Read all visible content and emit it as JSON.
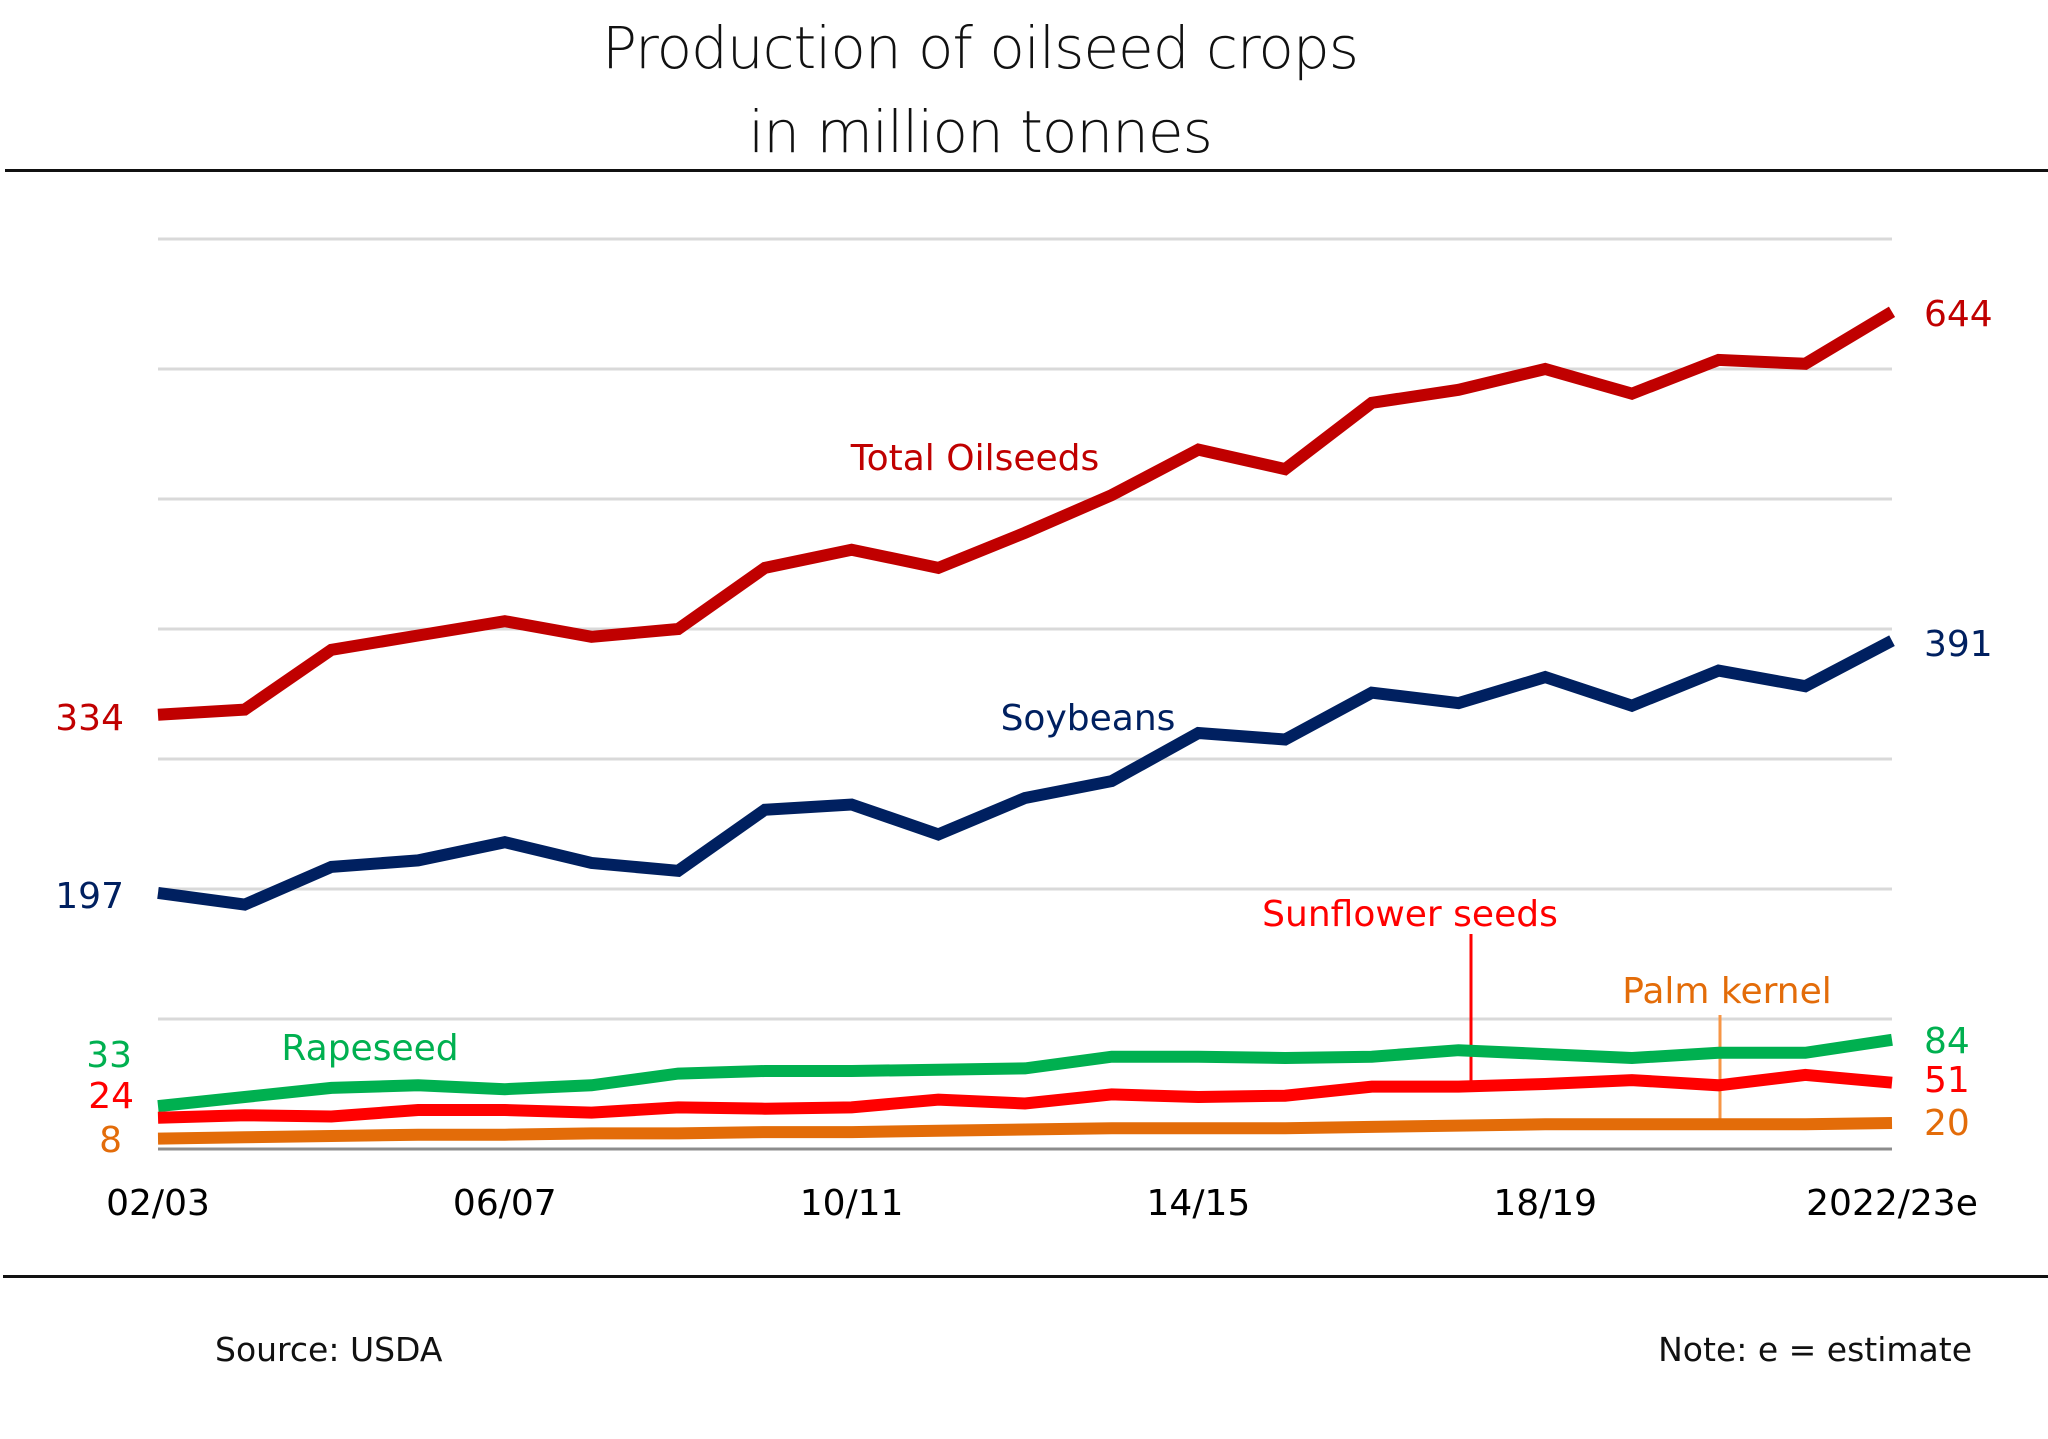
{
  "title_line1": "Production of oilseed crops",
  "title_line2": "in million tonnes",
  "footer": {
    "source": "Source: USDA",
    "note": "Note: e = estimate"
  },
  "chart_data": {
    "type": "line",
    "title": "Production of oilseed crops in million tonnes",
    "xlabel": "",
    "ylabel": "",
    "ylim": [
      0,
      700
    ],
    "grid": true,
    "x": [
      "02/03",
      "03/04",
      "04/05",
      "05/06",
      "06/07",
      "07/08",
      "08/09",
      "09/10",
      "10/11",
      "11/12",
      "12/13",
      "13/14",
      "14/15",
      "15/16",
      "16/17",
      "17/18",
      "18/19",
      "19/20",
      "20/21",
      "21/22",
      "2022/23e"
    ],
    "x_tick_labels": [
      {
        "index": 0,
        "label": "02/03"
      },
      {
        "index": 4,
        "label": "06/07"
      },
      {
        "index": 8,
        "label": "10/11"
      },
      {
        "index": 12,
        "label": "14/15"
      },
      {
        "index": 16,
        "label": "18/19"
      },
      {
        "index": 20,
        "label": "2022/23e"
      }
    ],
    "y_gridlines": [
      100,
      200,
      300,
      400,
      500,
      600,
      700
    ],
    "series": [
      {
        "name": "Total Oilseeds",
        "color": "#c00000",
        "start_label": "334",
        "end_label": "644",
        "values": [
          334,
          338,
          384,
          395,
          406,
          394,
          400,
          447,
          461,
          447,
          474,
          503,
          538,
          523,
          574,
          584,
          600,
          581,
          607,
          604,
          644
        ]
      },
      {
        "name": "Soybeans",
        "color": "#002060",
        "start_label": "197",
        "end_label": "391",
        "values": [
          197,
          188,
          217,
          222,
          236,
          220,
          214,
          261,
          265,
          242,
          270,
          283,
          320,
          315,
          351,
          343,
          363,
          341,
          368,
          356,
          391
        ]
      },
      {
        "name": "Rapeseed",
        "color": "#00b050",
        "start_label": "33",
        "end_label": "84",
        "values": [
          33,
          40,
          47,
          49,
          46,
          49,
          58,
          60,
          60,
          61,
          62,
          71,
          71,
          70,
          71,
          76,
          73,
          70,
          74,
          74,
          84
        ]
      },
      {
        "name": "Sunflower seeds",
        "color": "#ff0000",
        "start_label": "24",
        "end_label": "51",
        "values": [
          24,
          26,
          25,
          30,
          30,
          28,
          32,
          31,
          32,
          38,
          35,
          42,
          40,
          41,
          48,
          48,
          50,
          53,
          49,
          57,
          51
        ]
      },
      {
        "name": "Palm kernel",
        "color": "#e36c09",
        "start_label": "8",
        "end_label": "20",
        "values": [
          8,
          9,
          10,
          11,
          11,
          12,
          12,
          13,
          13,
          14,
          15,
          16,
          16,
          16,
          17,
          18,
          19,
          19,
          19,
          19,
          20
        ]
      }
    ],
    "annotations": [
      {
        "text": "Total Oilseeds",
        "series": "Total Oilseeds",
        "near_index": 10
      },
      {
        "text": "Soybeans",
        "series": "Soybeans",
        "near_index": 11
      },
      {
        "text": "Rapeseed",
        "series": "Rapeseed",
        "near_index": 2
      },
      {
        "text": "Sunflower seeds",
        "series": "Sunflower seeds",
        "near_index": 15,
        "leader_line": true
      },
      {
        "text": "Palm kernel",
        "series": "Palm kernel",
        "near_index": 18,
        "leader_line": true
      }
    ]
  }
}
